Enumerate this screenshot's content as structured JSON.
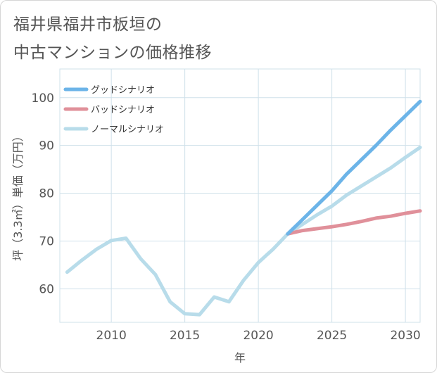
{
  "title": {
    "line1": "福井県福井市板垣の",
    "line2": "中古マンションの価格推移"
  },
  "chart_data": {
    "type": "line",
    "xlabel": "年",
    "ylabel": "坪（3.3㎡）単価（万円）",
    "xlim": [
      2006.5,
      2031
    ],
    "ylim": [
      53,
      106
    ],
    "x_ticks": [
      2010,
      2015,
      2020,
      2025,
      2030
    ],
    "y_ticks": [
      60,
      70,
      80,
      90,
      100
    ],
    "grid": true,
    "legend_position": "top-left",
    "series": [
      {
        "name": "グッドシナリオ",
        "color": "#6cb4e8",
        "x": [
          2022,
          2023,
          2024,
          2025,
          2026,
          2027,
          2028,
          2029,
          2030,
          2031
        ],
        "y": [
          71.5,
          74.5,
          77.5,
          80.5,
          84.0,
          87.0,
          90.0,
          93.2,
          96.2,
          99.2
        ]
      },
      {
        "name": "バッドシナリオ",
        "color": "#e0909a",
        "x": [
          2022,
          2023,
          2024,
          2025,
          2026,
          2027,
          2028,
          2029,
          2030,
          2031
        ],
        "y": [
          71.5,
          72.2,
          72.6,
          73.0,
          73.5,
          74.1,
          74.8,
          75.2,
          75.8,
          76.3
        ]
      },
      {
        "name": "ノーマルシナリオ",
        "color": "#b8dcea",
        "x": [
          2007,
          2008,
          2009,
          2010,
          2011,
          2012,
          2013,
          2014,
          2015,
          2016,
          2017,
          2018,
          2019,
          2020,
          2021,
          2022,
          2023,
          2024,
          2025,
          2026,
          2027,
          2028,
          2029,
          2030,
          2031
        ],
        "y": [
          63.5,
          66.0,
          68.3,
          70.1,
          70.6,
          66.3,
          63.0,
          57.3,
          54.8,
          54.6,
          58.3,
          57.3,
          61.8,
          65.5,
          68.3,
          71.5,
          73.5,
          75.5,
          77.3,
          79.6,
          81.5,
          83.4,
          85.3,
          87.5,
          89.6
        ]
      }
    ]
  }
}
